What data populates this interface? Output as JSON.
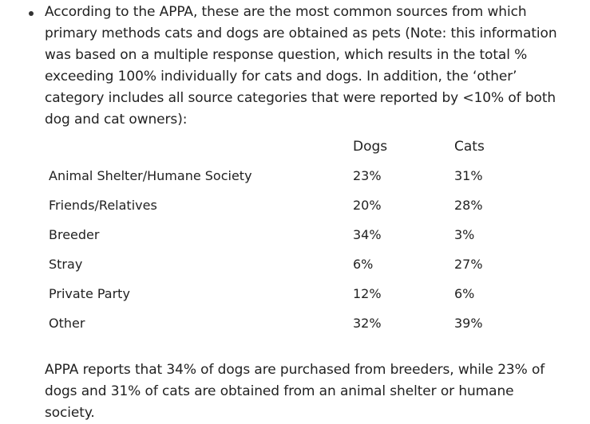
{
  "intro": {
    "text": "According to the APPA, these are the most common sources from which primary methods cats and dogs are obtained as pets (Note: this information was based on a multiple response question, which results in the total % exceeding 100% individually for cats and dogs.  In addition, the ‘other’ category includes all source categories that were reported by <10% of both dog and cat owners):"
  },
  "table": {
    "headers": {
      "source": "",
      "dogs": "Dogs",
      "cats": "Cats"
    },
    "rows": [
      {
        "source": "Animal Shelter/Humane Society",
        "dogs": "23%",
        "cats": "31%"
      },
      {
        "source": "Friends/Relatives",
        "dogs": "20%",
        "cats": "28%"
      },
      {
        "source": "Breeder",
        "dogs": "34%",
        "cats": "3%"
      },
      {
        "source": "Stray",
        "dogs": "6%",
        "cats": "27%"
      },
      {
        "source": "Private Party",
        "dogs": "12%",
        "cats": "6%"
      },
      {
        "source": "Other",
        "dogs": "32%",
        "cats": "39%"
      }
    ]
  },
  "summary": {
    "text": "APPA reports that 34% of dogs are purchased from breeders, while 23% of dogs and 31% of cats are obtained from an animal shelter or humane society."
  }
}
